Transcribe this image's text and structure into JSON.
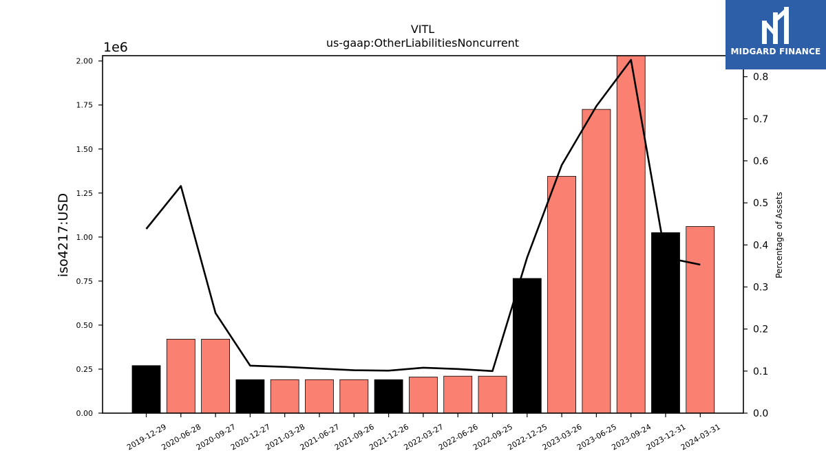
{
  "logo": {
    "brand": "MIDGARD FINANCE"
  },
  "chart_data": {
    "type": "bar",
    "title": "VITL",
    "subtitle": "us-gaap:OtherLiabilitiesNoncurrent",
    "ylabel": "iso4217:USD",
    "y_offset_label": "1e6",
    "y2label": "Percentage of Assets",
    "ylim": [
      0,
      2.03
    ],
    "y2lim": [
      0,
      0.85
    ],
    "yticks": [
      "0.00",
      "0.25",
      "0.50",
      "0.75",
      "1.00",
      "1.25",
      "1.50",
      "1.75",
      "2.00"
    ],
    "y2ticks": [
      "0.0",
      "0.1",
      "0.2",
      "0.3",
      "0.4",
      "0.5",
      "0.6",
      "0.7",
      "0.8"
    ],
    "categories": [
      "2019-12-29",
      "2020-06-28",
      "2020-09-27",
      "2020-12-27",
      "2021-03-28",
      "2021-06-27",
      "2021-09-26",
      "2021-12-26",
      "2022-03-27",
      "2022-06-26",
      "2022-09-25",
      "2022-12-25",
      "2023-03-26",
      "2023-06-25",
      "2023-09-24",
      "2023-12-31",
      "2024-03-31"
    ],
    "values": [
      0.27,
      0.42,
      0.42,
      0.19,
      0.19,
      0.19,
      0.19,
      0.19,
      0.205,
      0.21,
      0.21,
      0.765,
      1.345,
      1.725,
      2.05,
      1.025,
      1.06
    ],
    "bar_colors": [
      "#000000",
      "#fa8072",
      "#fa8072",
      "#000000",
      "#fa8072",
      "#fa8072",
      "#fa8072",
      "#000000",
      "#fa8072",
      "#fa8072",
      "#fa8072",
      "#000000",
      "#fa8072",
      "#fa8072",
      "#fa8072",
      "#000000",
      "#fa8072"
    ],
    "line_values": [
      0.438,
      0.54,
      0.238,
      0.113,
      0.11,
      0.106,
      0.102,
      0.101,
      0.108,
      0.105,
      0.1,
      0.37,
      0.59,
      0.73,
      0.84,
      0.37,
      0.353
    ],
    "line_color": "#000000",
    "grid": false
  }
}
